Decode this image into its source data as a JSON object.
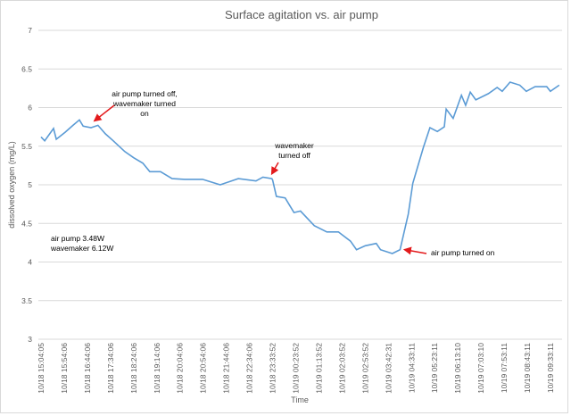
{
  "chart_data": {
    "type": "line",
    "title": "Surface agitation vs. air pump",
    "xlabel": "Time",
    "ylabel": "dissolved oxygen (mg/L)",
    "ylim": [
      3,
      7
    ],
    "yticks": [
      "3",
      "3.5",
      "4",
      "4.5",
      "5",
      "5.5",
      "6",
      "6.5",
      "7"
    ],
    "grid": true,
    "legend": "none",
    "line_color": "#5b9bd5",
    "arrow_color": "#e31a1c",
    "xtick_labels": [
      "10/18 15:04:05",
      "10/18 15:54:06",
      "10/18 16:44:06",
      "10/18 17:34:06",
      "10/18 18:24:06",
      "10/18 19:14:06",
      "10/18 20:04:06",
      "10/18 20:54:06",
      "10/18 21:44:06",
      "10/18 22:34:06",
      "10/18 23:33:52",
      "10/19 00:23:52",
      "10/19 01:13:52",
      "10/19 02:03:52",
      "10/19 02:53:52",
      "10/19 03:42:31",
      "10/19 04:33:11",
      "10/19 05:23:11",
      "10/19 06:13:10",
      "10/19 07:03:10",
      "10/19 07:53:11",
      "10/19 08:43:11",
      "10/19 09:33:11"
    ],
    "points": [
      [
        "10/18 15:04",
        5.62
      ],
      [
        "10/18 15:12",
        5.57
      ],
      [
        "10/18 15:31",
        5.73
      ],
      [
        "10/18 15:37",
        5.59
      ],
      [
        "10/18 15:56",
        5.68
      ],
      [
        "10/18 16:13",
        5.77
      ],
      [
        "10/18 16:27",
        5.84
      ],
      [
        "10/18 16:35",
        5.76
      ],
      [
        "10/18 16:52",
        5.74
      ],
      [
        "10/18 17:07",
        5.77
      ],
      [
        "10/18 17:23",
        5.66
      ],
      [
        "10/18 17:40",
        5.57
      ],
      [
        "10/18 18:05",
        5.43
      ],
      [
        "10/18 18:24",
        5.35
      ],
      [
        "10/18 18:44",
        5.28
      ],
      [
        "10/18 18:59",
        5.17
      ],
      [
        "10/18 19:22",
        5.17
      ],
      [
        "10/18 19:47",
        5.08
      ],
      [
        "10/18 20:14",
        5.07
      ],
      [
        "10/18 20:53",
        5.07
      ],
      [
        "10/18 21:31",
        5.0
      ],
      [
        "10/18 22:10",
        5.08
      ],
      [
        "10/18 22:51",
        5.05
      ],
      [
        "10/18 23:09",
        5.1
      ],
      [
        "10/18 23:32",
        5.08
      ],
      [
        "10/18 23:34",
        5.06
      ],
      [
        "10/18 23:42",
        4.85
      ],
      [
        "10/19 00:01",
        4.83
      ],
      [
        "10/19 00:20",
        4.64
      ],
      [
        "10/19 00:34",
        4.66
      ],
      [
        "10/19 01:04",
        4.47
      ],
      [
        "10/19 01:31",
        4.39
      ],
      [
        "10/19 01:56",
        4.39
      ],
      [
        "10/19 02:22",
        4.27
      ],
      [
        "10/19 02:35",
        4.16
      ],
      [
        "10/19 02:54",
        4.21
      ],
      [
        "10/19 03:17",
        4.24
      ],
      [
        "10/19 03:26",
        4.16
      ],
      [
        "10/19 03:51",
        4.11
      ],
      [
        "10/19 04:08",
        4.16
      ],
      [
        "10/19 04:26",
        4.62
      ],
      [
        "10/19 04:36",
        5.02
      ],
      [
        "10/19 04:59",
        5.49
      ],
      [
        "10/19 05:13",
        5.74
      ],
      [
        "10/19 05:29",
        5.69
      ],
      [
        "10/19 05:44",
        5.75
      ],
      [
        "10/19 05:48",
        5.98
      ],
      [
        "10/19 06:03",
        5.86
      ],
      [
        "10/19 06:21",
        6.16
      ],
      [
        "10/19 06:30",
        6.03
      ],
      [
        "10/19 06:40",
        6.2
      ],
      [
        "10/19 06:52",
        6.1
      ],
      [
        "10/19 07:19",
        6.18
      ],
      [
        "10/19 07:38",
        6.26
      ],
      [
        "10/19 07:49",
        6.21
      ],
      [
        "10/19 08:06",
        6.33
      ],
      [
        "10/19 08:27",
        6.29
      ],
      [
        "10/19 08:41",
        6.21
      ],
      [
        "10/19 09:00",
        6.27
      ],
      [
        "10/19 09:25",
        6.27
      ],
      [
        "10/19 09:33",
        6.21
      ],
      [
        "10/19 09:52",
        6.29
      ]
    ],
    "annotations": [
      {
        "lines": [
          "air pump turned off,",
          "wavemaker turned",
          "on"
        ],
        "target": [
          "10/18 17:07",
          5.77
        ]
      },
      {
        "lines": [
          "wavemaker",
          "turned off"
        ],
        "target": [
          "10/18 23:34",
          5.06
        ]
      },
      {
        "lines": [
          "air pump turned on"
        ],
        "target": [
          "10/19 04:08",
          4.16
        ]
      },
      {
        "lines": [
          "air pump 3.48W",
          "wavemaker 6.12W"
        ]
      }
    ]
  }
}
